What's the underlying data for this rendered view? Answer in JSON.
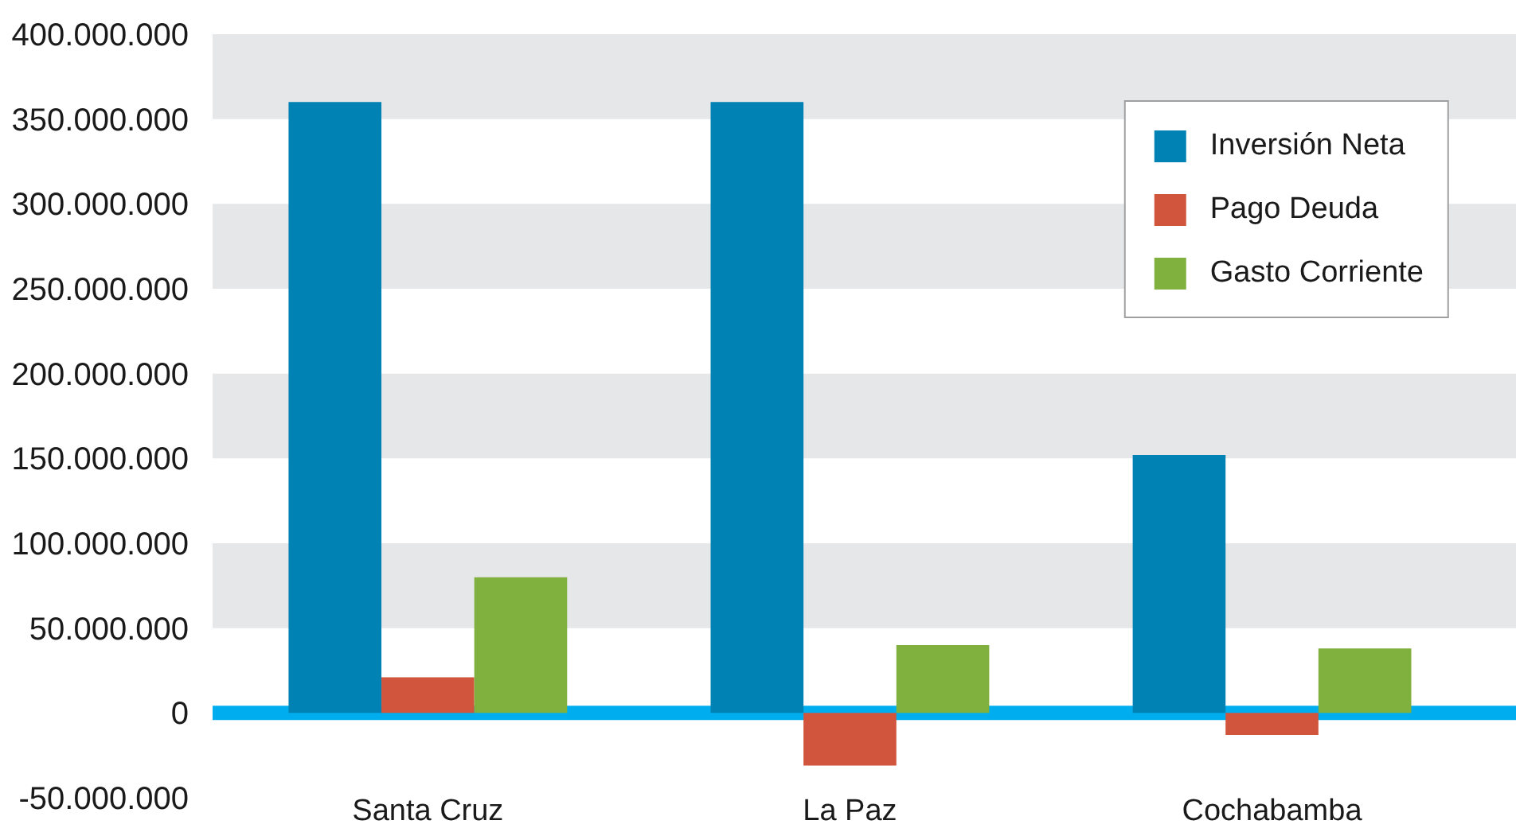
{
  "chart_data": {
    "type": "bar",
    "categories": [
      "Santa Cruz",
      "La Paz",
      "Cochabamba"
    ],
    "series": [
      {
        "name": "Inversión Neta",
        "color": "#0082b4",
        "values": [
          360000000,
          360000000,
          152000000
        ]
      },
      {
        "name": "Pago Deuda",
        "color": "#d0553c",
        "values": [
          21000000,
          -31000000,
          -13000000
        ]
      },
      {
        "name": "Gasto Corriente",
        "color": "#80b03e",
        "values": [
          80000000,
          40000000,
          38000000
        ]
      }
    ],
    "ylim": [
      -50000000,
      400000000
    ],
    "yticks": [
      {
        "value": -50000000,
        "label": "-50.000.000"
      },
      0,
      {
        "value": 50000000,
        "label": "50.000.000"
      },
      {
        "value": 100000000,
        "label": "100.000.000"
      },
      {
        "value": 150000000,
        "label": "150.000.000"
      },
      {
        "value": 200000000,
        "label": "200.000.000"
      },
      {
        "value": 250000000,
        "label": "250.000.000"
      },
      {
        "value": 300000000,
        "label": "300.000.000"
      },
      {
        "value": 350000000,
        "label": "350.000.000"
      },
      {
        "value": 400000000,
        "label": "400.000.000"
      }
    ],
    "legend": "top right",
    "bands": [
      {
        "axis": "y",
        "from": 50000000,
        "to": 100000000,
        "color": "#e6e7e9"
      },
      {
        "axis": "y",
        "from": 150000000,
        "to": 200000000,
        "color": "#e6e7e9"
      },
      {
        "axis": "y",
        "from": 250000000,
        "to": 300000000,
        "color": "#e6e7e9"
      },
      {
        "axis": "y",
        "from": 350000000,
        "to": 400000000,
        "color": "#e6e7e9"
      }
    ],
    "ref_lines": [
      {
        "axis": "y",
        "value": 0,
        "color": "#00aeef"
      }
    ]
  }
}
